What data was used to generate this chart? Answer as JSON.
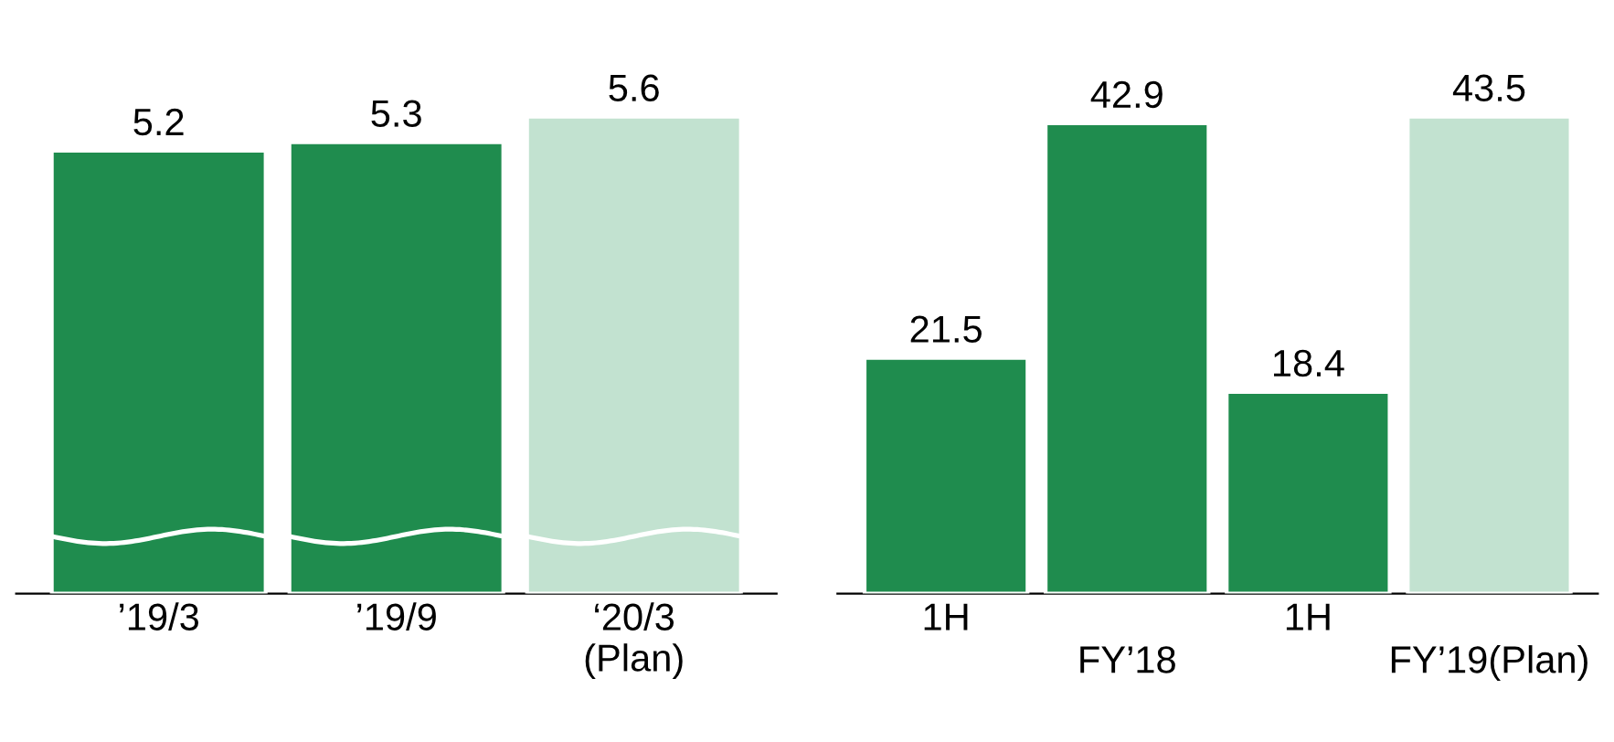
{
  "chart_data": [
    {
      "type": "bar",
      "categories": [
        "’19/3",
        "’19/9",
        "‘20/3\n(Plan)"
      ],
      "values": [
        5.2,
        5.3,
        5.6
      ],
      "colors": [
        "#1f8c4e",
        "#1f8c4e",
        "#c2e2d0"
      ],
      "data_labels": true,
      "tick_labels": "x"
    },
    {
      "type": "bar",
      "categories": [
        "1H",
        "FY’18",
        "1H",
        "FY’19(Plan)"
      ],
      "values": [
        21.5,
        42.9,
        18.4,
        43.5
      ],
      "colors": [
        "#1f8c4e",
        "#1f8c4e",
        "#1f8c4e",
        "#c2e2d0"
      ],
      "data_labels": true,
      "tick_labels": "x"
    }
  ]
}
